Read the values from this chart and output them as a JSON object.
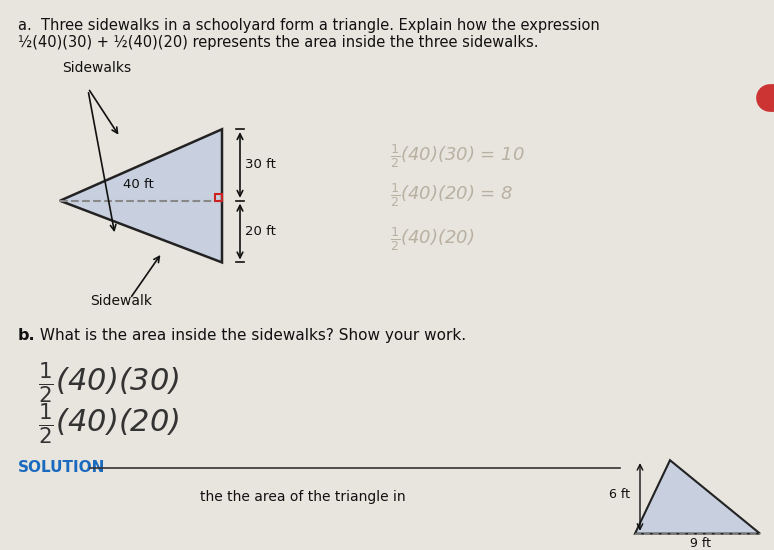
{
  "bg_color": "#e8e4de",
  "title_a": "a.  Three sidewalks in a schoolyard form a triangle. Explain how the expression",
  "title_a2": "½(40)(30) + ½(40)(20) represents the area inside the three sidewalks.",
  "sidewalks_label": "Sidewalks",
  "sidewalk_label": "Sidewalk",
  "dim_40": "40 ft",
  "dim_30": "30 ft",
  "dim_20": "20 ft",
  "triangle_fill": "#c8d0e0",
  "triangle_stroke": "#222222",
  "part_b_bold": "b.",
  "part_b_text": " What is the area inside the sidewalks? Show your work.",
  "handwriting_line1": "½(40)(30)",
  "handwriting_line2": "½(40)(20)",
  "solution_label": "SOLUTION",
  "solution_color": "#1a6bbf",
  "bottom_text": "the area of the triangle in",
  "dim_6": "6 ft",
  "dim_9": "9 ft",
  "small_tri_fill": "#c8d0e0",
  "small_tri_stroke": "#222222",
  "dashed_color": "#888888",
  "right_angle_color": "#cc2222"
}
